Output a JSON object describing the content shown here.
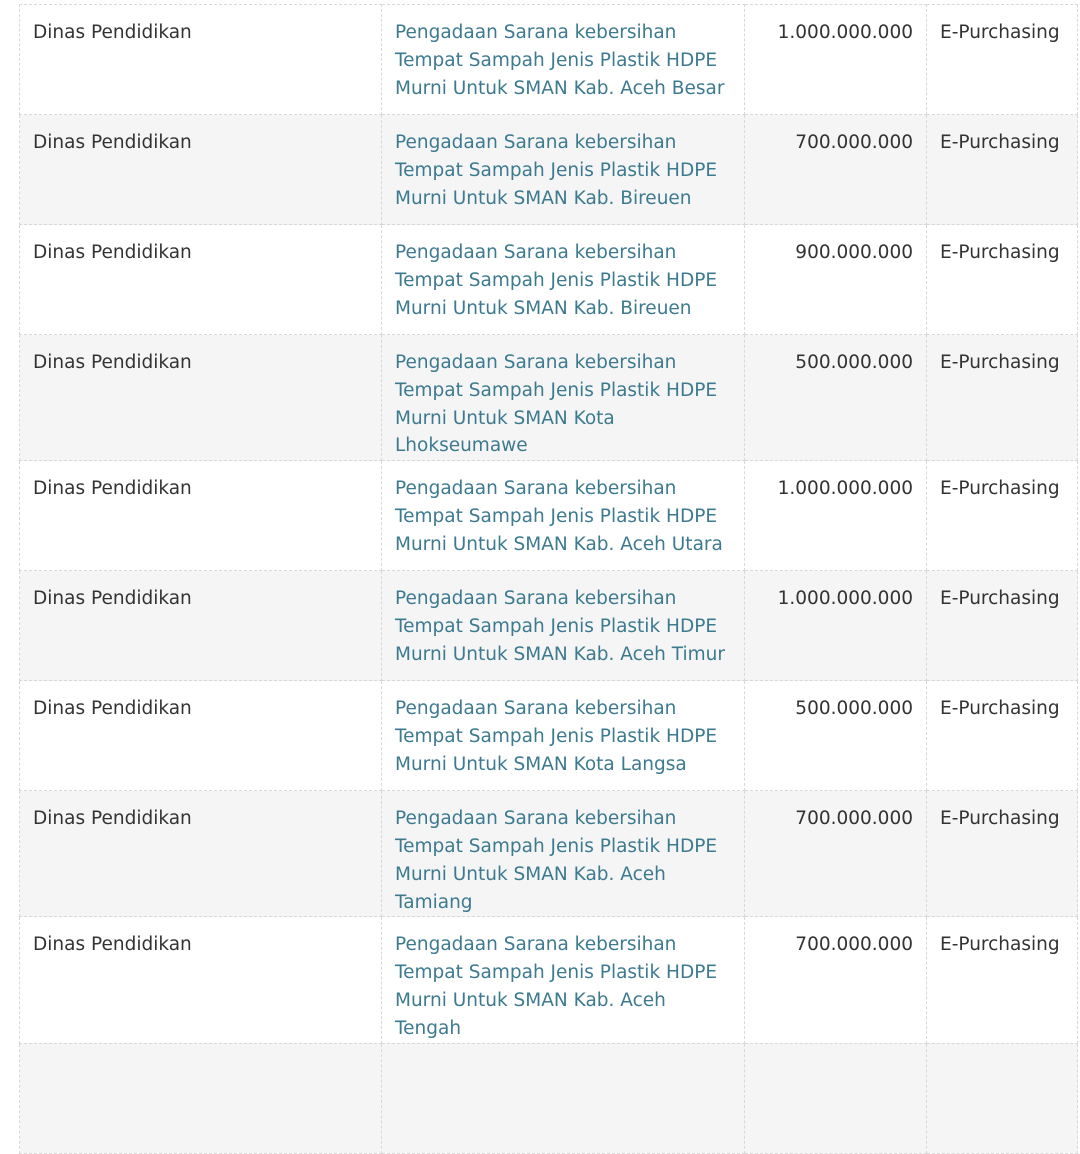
{
  "rows": [
    {
      "unit": "Dinas Pendidikan",
      "title": "Pengadaan Sarana kebersihan Tempat Sampah Jenis Plastik HDPE Murni Untuk SMAN Kab. Aceh Besar",
      "amount": "1.000.000.000",
      "method": "E-Purchasing"
    },
    {
      "unit": "Dinas Pendidikan",
      "title": "Pengadaan Sarana kebersihan Tempat Sampah Jenis Plastik HDPE Murni Untuk SMAN Kab. Bireuen",
      "amount": "700.000.000",
      "method": "E-Purchasing"
    },
    {
      "unit": "Dinas Pendidikan",
      "title": "Pengadaan Sarana kebersihan Tempat Sampah Jenis Plastik HDPE Murni Untuk SMAN Kab. Bireuen",
      "amount": "900.000.000",
      "method": "E-Purchasing"
    },
    {
      "unit": "Dinas Pendidikan",
      "title": "Pengadaan Sarana kebersihan Tempat Sampah Jenis Plastik HDPE Murni Untuk SMAN Kota Lhokseumawe",
      "amount": "500.000.000",
      "method": "E-Purchasing"
    },
    {
      "unit": "Dinas Pendidikan",
      "title": "Pengadaan Sarana kebersihan Tempat Sampah Jenis Plastik HDPE Murni Untuk SMAN Kab. Aceh Utara",
      "amount": "1.000.000.000",
      "method": "E-Purchasing"
    },
    {
      "unit": "Dinas Pendidikan",
      "title": "Pengadaan Sarana kebersihan Tempat Sampah Jenis Plastik HDPE Murni Untuk SMAN Kab. Aceh Timur",
      "amount": "1.000.000.000",
      "method": "E-Purchasing"
    },
    {
      "unit": "Dinas Pendidikan",
      "title": "Pengadaan Sarana kebersihan Tempat Sampah Jenis Plastik HDPE Murni Untuk SMAN Kota Langsa",
      "amount": "500.000.000",
      "method": "E-Purchasing"
    },
    {
      "unit": "Dinas Pendidikan",
      "title": "Pengadaan Sarana kebersihan Tempat Sampah Jenis Plastik HDPE Murni Untuk SMAN Kab. Aceh Tamiang",
      "amount": "700.000.000",
      "method": "E-Purchasing"
    },
    {
      "unit": "Dinas Pendidikan",
      "title": "Pengadaan Sarana kebersihan Tempat Sampah Jenis Plastik HDPE Murni Untuk SMAN Kab. Aceh Tengah",
      "amount": "700.000.000",
      "method": "E-Purchasing"
    },
    {
      "unit": "",
      "title": "",
      "amount": "",
      "method": ""
    }
  ],
  "colors": {
    "link": "#3d7a8f",
    "row_alt": "#f5f5f5"
  }
}
